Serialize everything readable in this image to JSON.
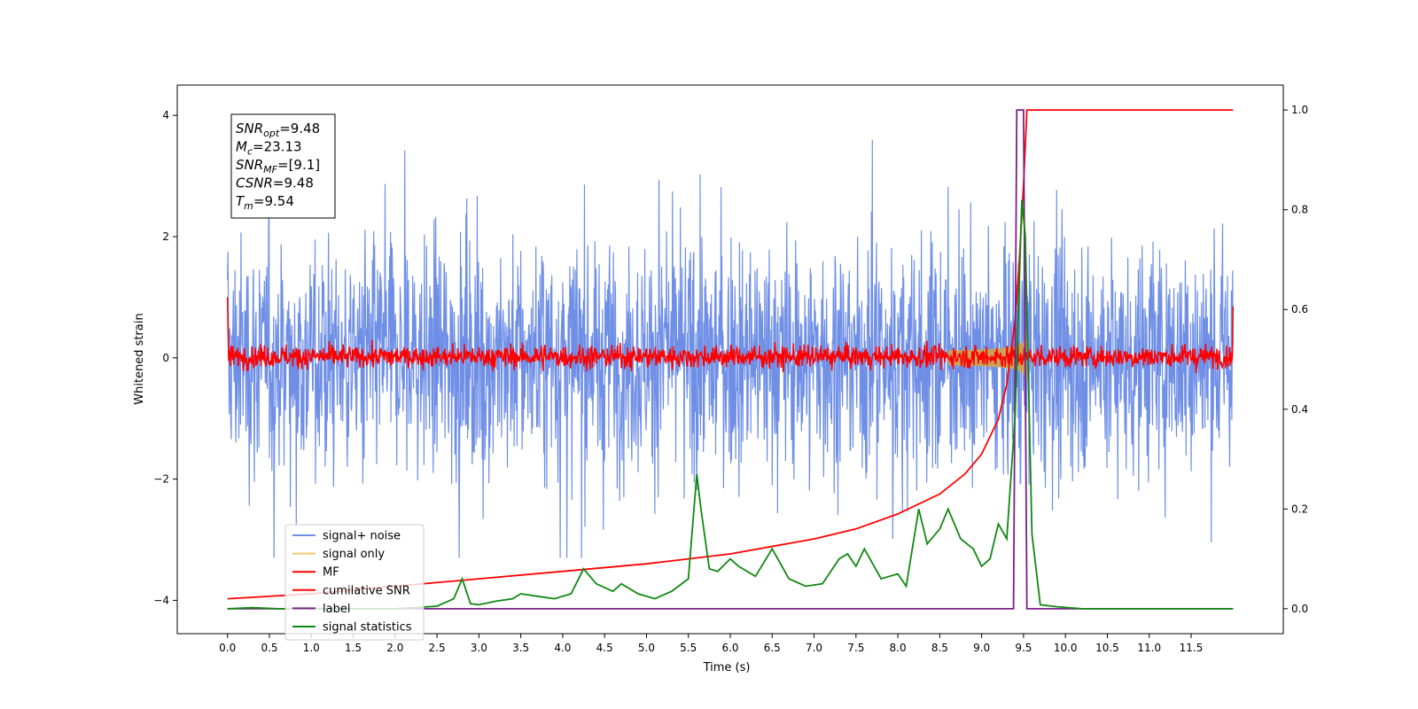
{
  "chart_data": {
    "type": "line",
    "xlabel": "Time (s)",
    "ylabel": "Whitened strain",
    "xlim": [
      -0.6,
      12.6
    ],
    "ylim": [
      -4.55,
      4.5
    ],
    "y2lim": [
      -0.05,
      1.05
    ],
    "x_ticks": [
      "0.0",
      "0.5",
      "1.0",
      "1.5",
      "2.0",
      "2.5",
      "3.0",
      "3.5",
      "4.0",
      "4.5",
      "5.0",
      "5.5",
      "6.0",
      "6.5",
      "7.0",
      "7.5",
      "8.0",
      "8.5",
      "9.0",
      "9.5",
      "10.0",
      "10.5",
      "11.0",
      "11.5"
    ],
    "y_ticks": [
      "4",
      "2",
      "0",
      "−2",
      "−4"
    ],
    "y2_ticks": [
      "1.0",
      "0.8",
      "0.6",
      "0.4",
      "0.2",
      "0.0"
    ],
    "grid": false,
    "legend_position": "lower-left",
    "annotation": {
      "lines": [
        {
          "var": "SNR",
          "sub": "opt",
          "value": "=9.48"
        },
        {
          "var": "M",
          "sub": "c",
          "value": "=23.13"
        },
        {
          "var": "SNR",
          "sub": "MF",
          "value": "=[9.1]"
        },
        {
          "var": "CSNR",
          "sub": "",
          "value": "=9.48"
        },
        {
          "var": "T",
          "sub": "m",
          "value": "=9.54"
        }
      ]
    },
    "series": [
      {
        "name": "signal+ noise",
        "color": "#6f8fe6",
        "axis": "left",
        "description_kind": "noise",
        "range": [
          0.0,
          12.0
        ],
        "envelope": [
          -2.4,
          3.2
        ]
      },
      {
        "name": "signal only",
        "color": "#f2c96b",
        "axis": "left",
        "kind": "chirp",
        "merger_time": 9.54
      },
      {
        "name": "MF",
        "color": "#ff0000",
        "axis": "left",
        "kind": "noise",
        "range": [
          0.0,
          12.0
        ]
      },
      {
        "name": "cumilative SNR",
        "color": "#ff0000",
        "axis": "right",
        "x": [
          0.0,
          1.0,
          2.0,
          3.0,
          4.0,
          5.0,
          6.0,
          7.0,
          7.5,
          8.0,
          8.5,
          8.8,
          9.0,
          9.2,
          9.3,
          9.4,
          9.45,
          9.5,
          9.54,
          9.56,
          9.6,
          10.0,
          11.0,
          12.0
        ],
        "y": [
          0.02,
          0.03,
          0.045,
          0.06,
          0.075,
          0.09,
          0.11,
          0.14,
          0.16,
          0.19,
          0.23,
          0.27,
          0.31,
          0.38,
          0.45,
          0.58,
          0.7,
          0.85,
          1.0,
          1.0,
          1.0,
          1.0,
          1.0,
          1.0
        ]
      },
      {
        "name": "label",
        "color": "#7b1f8a",
        "axis": "right",
        "x": [
          0.0,
          9.38,
          9.42,
          9.5,
          9.54,
          12.0
        ],
        "y": [
          0.0,
          0.0,
          1.0,
          1.0,
          0.0,
          0.0
        ]
      },
      {
        "name": "signal statistics",
        "color": "#118811",
        "axis": "right",
        "x": [
          0.0,
          0.3,
          0.6,
          1.0,
          1.5,
          2.0,
          2.5,
          2.7,
          2.8,
          2.9,
          3.0,
          3.2,
          3.4,
          3.5,
          3.7,
          3.9,
          4.1,
          4.25,
          4.4,
          4.6,
          4.7,
          4.9,
          5.1,
          5.3,
          5.5,
          5.6,
          5.65,
          5.75,
          5.85,
          6.0,
          6.1,
          6.3,
          6.5,
          6.7,
          6.9,
          7.1,
          7.3,
          7.4,
          7.5,
          7.6,
          7.8,
          8.0,
          8.1,
          8.25,
          8.35,
          8.5,
          8.6,
          8.75,
          8.9,
          9.0,
          9.1,
          9.2,
          9.3,
          9.4,
          9.48,
          9.52,
          9.6,
          9.7,
          9.9,
          10.2,
          11.0,
          12.0
        ],
        "y": [
          0.0,
          0.002,
          0.0,
          0.0,
          0.0,
          0.0,
          0.005,
          0.02,
          0.06,
          0.01,
          0.008,
          0.015,
          0.02,
          0.03,
          0.025,
          0.02,
          0.03,
          0.08,
          0.05,
          0.035,
          0.05,
          0.03,
          0.02,
          0.035,
          0.06,
          0.27,
          0.2,
          0.08,
          0.075,
          0.1,
          0.085,
          0.065,
          0.12,
          0.06,
          0.045,
          0.05,
          0.1,
          0.11,
          0.085,
          0.12,
          0.06,
          0.07,
          0.045,
          0.2,
          0.13,
          0.16,
          0.2,
          0.14,
          0.12,
          0.085,
          0.1,
          0.17,
          0.14,
          0.39,
          0.82,
          0.75,
          0.15,
          0.008,
          0.004,
          0.0,
          0.0,
          0.0
        ]
      }
    ]
  }
}
